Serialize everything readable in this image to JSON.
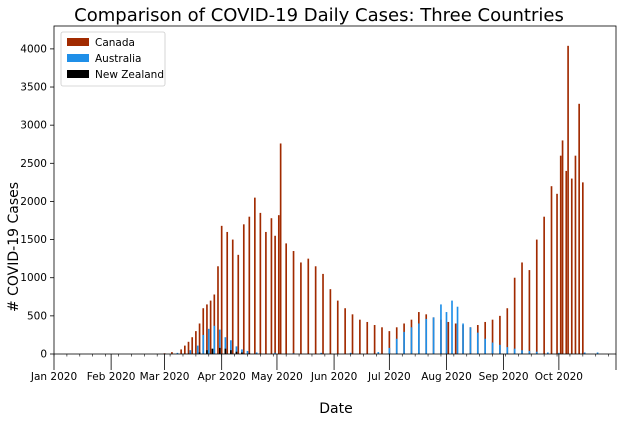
{
  "chart_data": {
    "type": "bar",
    "title": "Comparison of COVID-19 Daily Cases: Three Countries",
    "xlabel": "Date",
    "ylabel": "# COVID-19 Cases",
    "ylim": [
      0,
      4300
    ],
    "yticks": [
      0,
      500,
      1000,
      1500,
      2000,
      2500,
      3000,
      3500,
      4000
    ],
    "x_start": "2020-01-01",
    "x_end": "2020-11-01",
    "xtick_labels": [
      {
        "date": "2020-01-01",
        "label": "Jan 2020"
      },
      {
        "date": "2020-02-01",
        "label": "Feb 2020"
      },
      {
        "date": "2020-03-01",
        "label": "Mar 2020"
      },
      {
        "date": "2020-04-01",
        "label": "Apr 2020"
      },
      {
        "date": "2020-05-01",
        "label": "May 2020"
      },
      {
        "date": "2020-06-01",
        "label": "Jun 2020"
      },
      {
        "date": "2020-07-01",
        "label": "Jul 2020"
      },
      {
        "date": "2020-08-01",
        "label": "Aug 2020"
      },
      {
        "date": "2020-09-01",
        "label": "Sep 2020"
      },
      {
        "date": "2020-10-01",
        "label": "Oct 2020"
      }
    ],
    "legend_position": "top-left",
    "series": [
      {
        "name": "Canada",
        "color": "#a12a00",
        "points": [
          [
            "2020-03-01",
            10
          ],
          [
            "2020-03-05",
            25
          ],
          [
            "2020-03-10",
            60
          ],
          [
            "2020-03-12",
            110
          ],
          [
            "2020-03-14",
            160
          ],
          [
            "2020-03-16",
            220
          ],
          [
            "2020-03-18",
            300
          ],
          [
            "2020-03-20",
            400
          ],
          [
            "2020-03-22",
            600
          ],
          [
            "2020-03-24",
            650
          ],
          [
            "2020-03-26",
            700
          ],
          [
            "2020-03-28",
            780
          ],
          [
            "2020-03-30",
            1150
          ],
          [
            "2020-04-01",
            1680
          ],
          [
            "2020-04-04",
            1600
          ],
          [
            "2020-04-07",
            1500
          ],
          [
            "2020-04-10",
            1300
          ],
          [
            "2020-04-13",
            1700
          ],
          [
            "2020-04-16",
            1800
          ],
          [
            "2020-04-19",
            2050
          ],
          [
            "2020-04-22",
            1850
          ],
          [
            "2020-04-25",
            1600
          ],
          [
            "2020-04-28",
            1780
          ],
          [
            "2020-04-30",
            1550
          ],
          [
            "2020-05-02",
            1820
          ],
          [
            "2020-05-03",
            2760
          ],
          [
            "2020-05-06",
            1450
          ],
          [
            "2020-05-10",
            1350
          ],
          [
            "2020-05-14",
            1200
          ],
          [
            "2020-05-18",
            1250
          ],
          [
            "2020-05-22",
            1150
          ],
          [
            "2020-05-26",
            1050
          ],
          [
            "2020-05-30",
            850
          ],
          [
            "2020-06-03",
            700
          ],
          [
            "2020-06-07",
            600
          ],
          [
            "2020-06-11",
            520
          ],
          [
            "2020-06-15",
            450
          ],
          [
            "2020-06-19",
            420
          ],
          [
            "2020-06-23",
            380
          ],
          [
            "2020-06-27",
            350
          ],
          [
            "2020-07-01",
            300
          ],
          [
            "2020-07-05",
            350
          ],
          [
            "2020-07-09",
            400
          ],
          [
            "2020-07-13",
            450
          ],
          [
            "2020-07-17",
            550
          ],
          [
            "2020-07-21",
            520
          ],
          [
            "2020-07-25",
            480
          ],
          [
            "2020-07-29",
            450
          ],
          [
            "2020-08-02",
            420
          ],
          [
            "2020-08-06",
            400
          ],
          [
            "2020-08-10",
            380
          ],
          [
            "2020-08-14",
            350
          ],
          [
            "2020-08-18",
            380
          ],
          [
            "2020-08-22",
            420
          ],
          [
            "2020-08-26",
            450
          ],
          [
            "2020-08-30",
            500
          ],
          [
            "2020-09-03",
            600
          ],
          [
            "2020-09-07",
            1000
          ],
          [
            "2020-09-11",
            1200
          ],
          [
            "2020-09-15",
            1100
          ],
          [
            "2020-09-19",
            1500
          ],
          [
            "2020-09-23",
            1800
          ],
          [
            "2020-09-27",
            2200
          ],
          [
            "2020-09-30",
            2100
          ],
          [
            "2020-10-02",
            2600
          ],
          [
            "2020-10-03",
            2800
          ],
          [
            "2020-10-05",
            2400
          ],
          [
            "2020-10-06",
            4040
          ],
          [
            "2020-10-08",
            2300
          ],
          [
            "2020-10-10",
            2600
          ],
          [
            "2020-10-12",
            3280
          ],
          [
            "2020-10-14",
            2250
          ]
        ]
      },
      {
        "name": "Australia",
        "color": "#1f8fe8",
        "points": [
          [
            "2020-03-01",
            2
          ],
          [
            "2020-03-08",
            15
          ],
          [
            "2020-03-15",
            50
          ],
          [
            "2020-03-19",
            110
          ],
          [
            "2020-03-22",
            250
          ],
          [
            "2020-03-25",
            330
          ],
          [
            "2020-03-28",
            370
          ],
          [
            "2020-03-31",
            320
          ],
          [
            "2020-04-03",
            220
          ],
          [
            "2020-04-06",
            180
          ],
          [
            "2020-04-09",
            100
          ],
          [
            "2020-04-12",
            60
          ],
          [
            "2020-04-15",
            40
          ],
          [
            "2020-04-20",
            20
          ],
          [
            "2020-04-30",
            15
          ],
          [
            "2020-05-10",
            10
          ],
          [
            "2020-05-25",
            15
          ],
          [
            "2020-06-10",
            15
          ],
          [
            "2020-06-25",
            25
          ],
          [
            "2020-07-01",
            80
          ],
          [
            "2020-07-05",
            200
          ],
          [
            "2020-07-09",
            290
          ],
          [
            "2020-07-13",
            350
          ],
          [
            "2020-07-17",
            400
          ],
          [
            "2020-07-21",
            460
          ],
          [
            "2020-07-25",
            480
          ],
          [
            "2020-07-29",
            650
          ],
          [
            "2020-08-01",
            550
          ],
          [
            "2020-08-04",
            700
          ],
          [
            "2020-08-07",
            620
          ],
          [
            "2020-08-10",
            400
          ],
          [
            "2020-08-14",
            350
          ],
          [
            "2020-08-18",
            280
          ],
          [
            "2020-08-22",
            200
          ],
          [
            "2020-08-26",
            150
          ],
          [
            "2020-08-30",
            120
          ],
          [
            "2020-09-03",
            90
          ],
          [
            "2020-09-07",
            70
          ],
          [
            "2020-09-11",
            50
          ],
          [
            "2020-09-15",
            40
          ],
          [
            "2020-09-19",
            30
          ],
          [
            "2020-09-25",
            20
          ],
          [
            "2020-10-01",
            15
          ],
          [
            "2020-10-15",
            20
          ],
          [
            "2020-10-22",
            20
          ]
        ]
      },
      {
        "name": "New Zealand",
        "color": "#000000",
        "points": [
          [
            "2020-03-14",
            5
          ],
          [
            "2020-03-20",
            20
          ],
          [
            "2020-03-24",
            50
          ],
          [
            "2020-03-27",
            70
          ],
          [
            "2020-03-31",
            80
          ],
          [
            "2020-04-03",
            70
          ],
          [
            "2020-04-06",
            50
          ],
          [
            "2020-04-09",
            30
          ],
          [
            "2020-04-12",
            20
          ],
          [
            "2020-04-16",
            10
          ],
          [
            "2020-04-22",
            5
          ],
          [
            "2020-08-14",
            5
          ]
        ]
      }
    ]
  }
}
